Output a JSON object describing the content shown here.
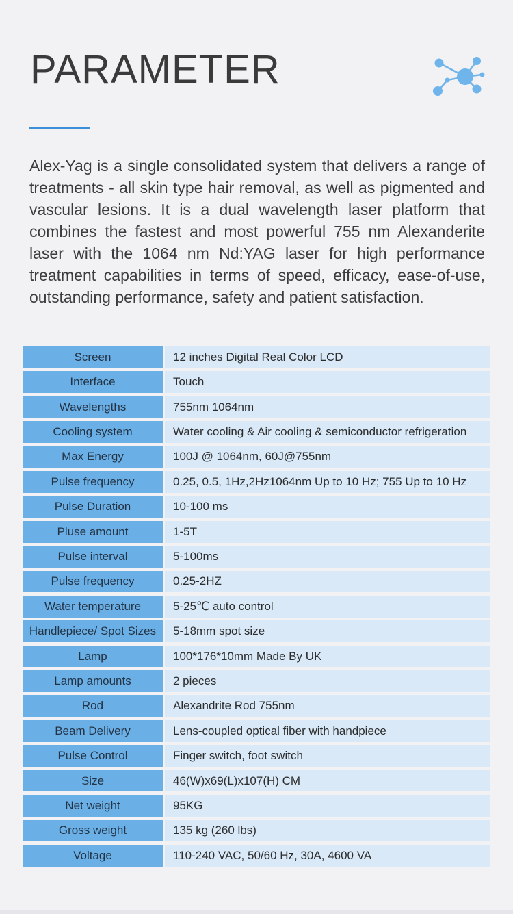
{
  "header": {
    "title": "PARAMETER",
    "icon": "network-icon",
    "accent_color": "#3a8fd8"
  },
  "intro": {
    "text": "Alex-Yag  is a single consolidated system that delivers a range of treatments - all skin type hair removal, as well as pigmented and vascular lesions. It is a dual wavelength laser platform that combines the fastest and most powerful 755 nm Alexanderite laser with the 1064 nm Nd:YAG laser for high performance treatment capabilities in terms of speed, efficacy, ease-of-use, outstanding performance, safety and patient satisfaction."
  },
  "specs": {
    "label_color": "#6ab0e7",
    "value_color": "#d9e9f8",
    "rows": [
      {
        "label": "Screen",
        "value": "12 inches Digital Real Color LCD"
      },
      {
        "label": "Interface",
        "value": "Touch"
      },
      {
        "label": "Wavelengths",
        "value": "755nm 1064nm"
      },
      {
        "label": "Cooling system",
        "value": "Water cooling & Air cooling & semiconductor refrigeration"
      },
      {
        "label": "Max Energy",
        "value": "100J @ 1064nm, 60J@755nm"
      },
      {
        "label": "Pulse frequency",
        "value": "0.25, 0.5, 1Hz,2Hz1064nm Up to 10 Hz; 755 Up to 10 Hz"
      },
      {
        "label": "Pulse Duration",
        "value": "10-100 ms"
      },
      {
        "label": "Pluse amount",
        "value": "1-5T"
      },
      {
        "label": "Pulse interval",
        "value": "5-100ms"
      },
      {
        "label": "Pulse frequency",
        "value": "0.25-2HZ"
      },
      {
        "label": "Water temperature",
        "value": "5-25℃ auto control"
      },
      {
        "label": "Handlepiece/ Spot Sizes",
        "value": "5-18mm spot size"
      },
      {
        "label": "Lamp",
        "value": "100*176*10mm Made By UK"
      },
      {
        "label": "Lamp amounts",
        "value": "2 pieces"
      },
      {
        "label": "Rod",
        "value": "Alexandrite Rod 755nm"
      },
      {
        "label": "Beam Delivery",
        "value": "Lens-coupled optical fiber with handpiece"
      },
      {
        "label": "Pulse Control",
        "value": "Finger switch, foot switch"
      },
      {
        "label": "Size",
        "value": "46(W)x69(L)x107(H) CM"
      },
      {
        "label": "Net weight",
        "value": "95KG"
      },
      {
        "label": "Gross weight",
        "value": "135 kg (260 lbs)"
      },
      {
        "label": "Voltage",
        "value": "110-240 VAC, 50/60 Hz, 30A, 4600 VA"
      }
    ]
  }
}
